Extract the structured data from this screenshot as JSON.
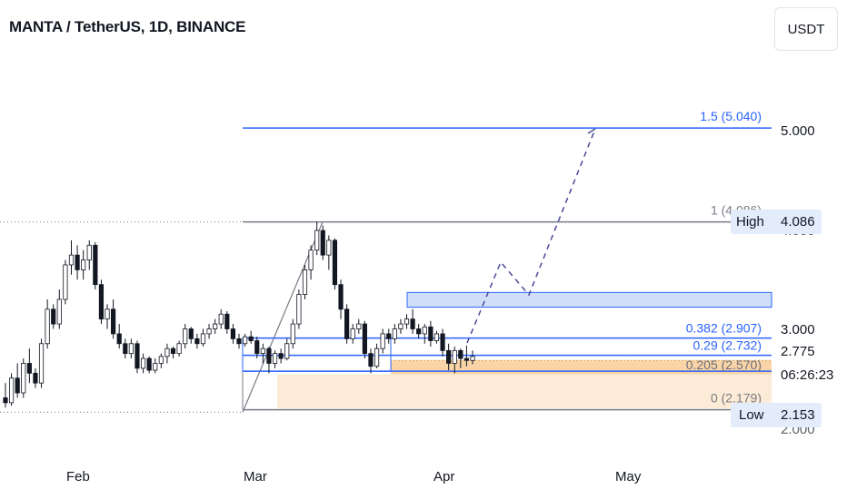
{
  "header": {
    "title": "MANTA / TetherUS, 1D, BINANCE",
    "currency": "USDT"
  },
  "colors": {
    "fib_blue": "#2962ff",
    "fib_gray": "#787b86",
    "orange_zone": "#f7c58a",
    "blue_zone": "#bcd0f7",
    "candle": "#131722"
  },
  "price_axis": {
    "labels": [
      "5.000",
      "4.000",
      "3.000",
      "2.775",
      "2.000"
    ],
    "high_label": "High",
    "high_value": "4.086",
    "low_label": "Low",
    "low_value": "2.153",
    "countdown": "06:26:23"
  },
  "time_axis": {
    "labels": [
      "Feb",
      "Mar",
      "Apr",
      "May"
    ]
  },
  "fib_levels": [
    {
      "text": "1.5 (5.040)",
      "value": 5.04
    },
    {
      "text": "1 (4.086)",
      "value": 4.086
    },
    {
      "text": "0.382 (2.907)",
      "value": 2.907
    },
    {
      "text": "0.29 (2.732)",
      "value": 2.732
    },
    {
      "text": "0.205 (2.570)",
      "value": 2.57
    },
    {
      "text": "0 (2.179)",
      "value": 2.179
    }
  ],
  "chart_data": {
    "type": "candlestick",
    "symbol": "MANTA / TetherUS",
    "interval": "1D",
    "exchange": "BINANCE",
    "x_labels": [
      "Feb",
      "Mar",
      "Apr",
      "May"
    ],
    "ylim": [
      1.98,
      5.45
    ],
    "current_price": 2.775,
    "swing_high": 4.086,
    "swing_low": 2.153,
    "candles": [
      [
        2.3,
        2.45,
        2.2,
        2.25
      ],
      [
        2.25,
        2.55,
        2.22,
        2.5
      ],
      [
        2.5,
        2.65,
        2.3,
        2.35
      ],
      [
        2.35,
        2.7,
        2.3,
        2.65
      ],
      [
        2.65,
        2.8,
        2.45,
        2.55
      ],
      [
        2.55,
        2.6,
        2.4,
        2.45
      ],
      [
        2.45,
        2.9,
        2.4,
        2.85
      ],
      [
        2.85,
        3.3,
        2.8,
        3.2
      ],
      [
        3.2,
        3.25,
        3.0,
        3.05
      ],
      [
        3.05,
        3.4,
        3.0,
        3.3
      ],
      [
        3.3,
        3.7,
        3.25,
        3.65
      ],
      [
        3.65,
        3.9,
        3.55,
        3.75
      ],
      [
        3.75,
        3.85,
        3.5,
        3.6
      ],
      [
        3.6,
        3.8,
        3.5,
        3.7
      ],
      [
        3.7,
        3.9,
        3.6,
        3.85
      ],
      [
        3.85,
        3.88,
        3.4,
        3.45
      ],
      [
        3.45,
        3.5,
        3.05,
        3.1
      ],
      [
        3.1,
        3.25,
        3.0,
        3.2
      ],
      [
        3.2,
        3.3,
        2.9,
        2.95
      ],
      [
        2.95,
        3.05,
        2.8,
        2.85
      ],
      [
        2.85,
        2.9,
        2.7,
        2.75
      ],
      [
        2.75,
        2.9,
        2.7,
        2.85
      ],
      [
        2.85,
        2.88,
        2.55,
        2.6
      ],
      [
        2.6,
        2.75,
        2.55,
        2.7
      ],
      [
        2.7,
        2.72,
        2.55,
        2.58
      ],
      [
        2.58,
        2.7,
        2.55,
        2.65
      ],
      [
        2.65,
        2.75,
        2.6,
        2.72
      ],
      [
        2.72,
        2.85,
        2.65,
        2.8
      ],
      [
        2.8,
        2.82,
        2.7,
        2.75
      ],
      [
        2.75,
        2.88,
        2.72,
        2.85
      ],
      [
        2.85,
        3.05,
        2.8,
        3.0
      ],
      [
        3.0,
        3.02,
        2.85,
        2.9
      ],
      [
        2.9,
        2.95,
        2.8,
        2.85
      ],
      [
        2.85,
        3.0,
        2.82,
        2.95
      ],
      [
        2.95,
        3.05,
        2.9,
        3.0
      ],
      [
        3.0,
        3.1,
        2.95,
        3.05
      ],
      [
        3.05,
        3.2,
        3.0,
        3.15
      ],
      [
        3.15,
        3.18,
        2.95,
        3.0
      ],
      [
        3.0,
        3.05,
        2.85,
        2.9
      ],
      [
        2.9,
        2.95,
        2.8,
        2.85
      ],
      [
        2.85,
        2.95,
        2.82,
        2.92
      ],
      [
        2.92,
        2.98,
        2.85,
        2.88
      ],
      [
        2.88,
        2.92,
        2.7,
        2.75
      ],
      [
        2.75,
        2.85,
        2.65,
        2.8
      ],
      [
        2.8,
        2.82,
        2.55,
        2.65
      ],
      [
        2.65,
        2.78,
        2.6,
        2.75
      ],
      [
        2.75,
        2.8,
        2.65,
        2.7
      ],
      [
        2.7,
        2.9,
        2.68,
        2.85
      ],
      [
        2.85,
        3.1,
        2.8,
        3.05
      ],
      [
        3.05,
        3.4,
        3.0,
        3.35
      ],
      [
        3.35,
        3.65,
        3.3,
        3.6
      ],
      [
        3.6,
        3.85,
        3.5,
        3.8
      ],
      [
        3.8,
        4.09,
        3.75,
        4.0
      ],
      [
        4.0,
        4.05,
        3.7,
        3.75
      ],
      [
        3.75,
        3.95,
        3.6,
        3.9
      ],
      [
        3.9,
        3.92,
        3.4,
        3.45
      ],
      [
        3.45,
        3.5,
        3.1,
        3.2
      ],
      [
        3.2,
        3.25,
        2.85,
        2.9
      ],
      [
        2.9,
        3.05,
        2.85,
        3.0
      ],
      [
        3.0,
        3.1,
        2.95,
        3.05
      ],
      [
        3.05,
        3.08,
        2.7,
        2.75
      ],
      [
        2.75,
        2.8,
        2.55,
        2.62
      ],
      [
        2.62,
        2.85,
        2.6,
        2.8
      ],
      [
        2.8,
        3.0,
        2.75,
        2.95
      ],
      [
        2.95,
        3.0,
        2.85,
        2.9
      ],
      [
        2.9,
        3.05,
        2.85,
        3.0
      ],
      [
        3.0,
        3.1,
        2.95,
        3.05
      ],
      [
        3.05,
        3.15,
        3.0,
        3.1
      ],
      [
        3.1,
        3.2,
        2.95,
        3.0
      ],
      [
        3.0,
        3.05,
        2.9,
        2.95
      ],
      [
        2.95,
        3.05,
        2.85,
        3.02
      ],
      [
        3.02,
        3.08,
        2.82,
        2.88
      ],
      [
        2.88,
        2.98,
        2.85,
        2.95
      ],
      [
        2.95,
        3.0,
        2.72,
        2.78
      ],
      [
        2.78,
        2.85,
        2.58,
        2.65
      ],
      [
        2.65,
        2.82,
        2.55,
        2.78
      ],
      [
        2.78,
        2.8,
        2.6,
        2.7
      ],
      [
        2.7,
        2.83,
        2.62,
        2.68
      ],
      [
        2.68,
        2.78,
        2.64,
        2.72
      ]
    ]
  }
}
